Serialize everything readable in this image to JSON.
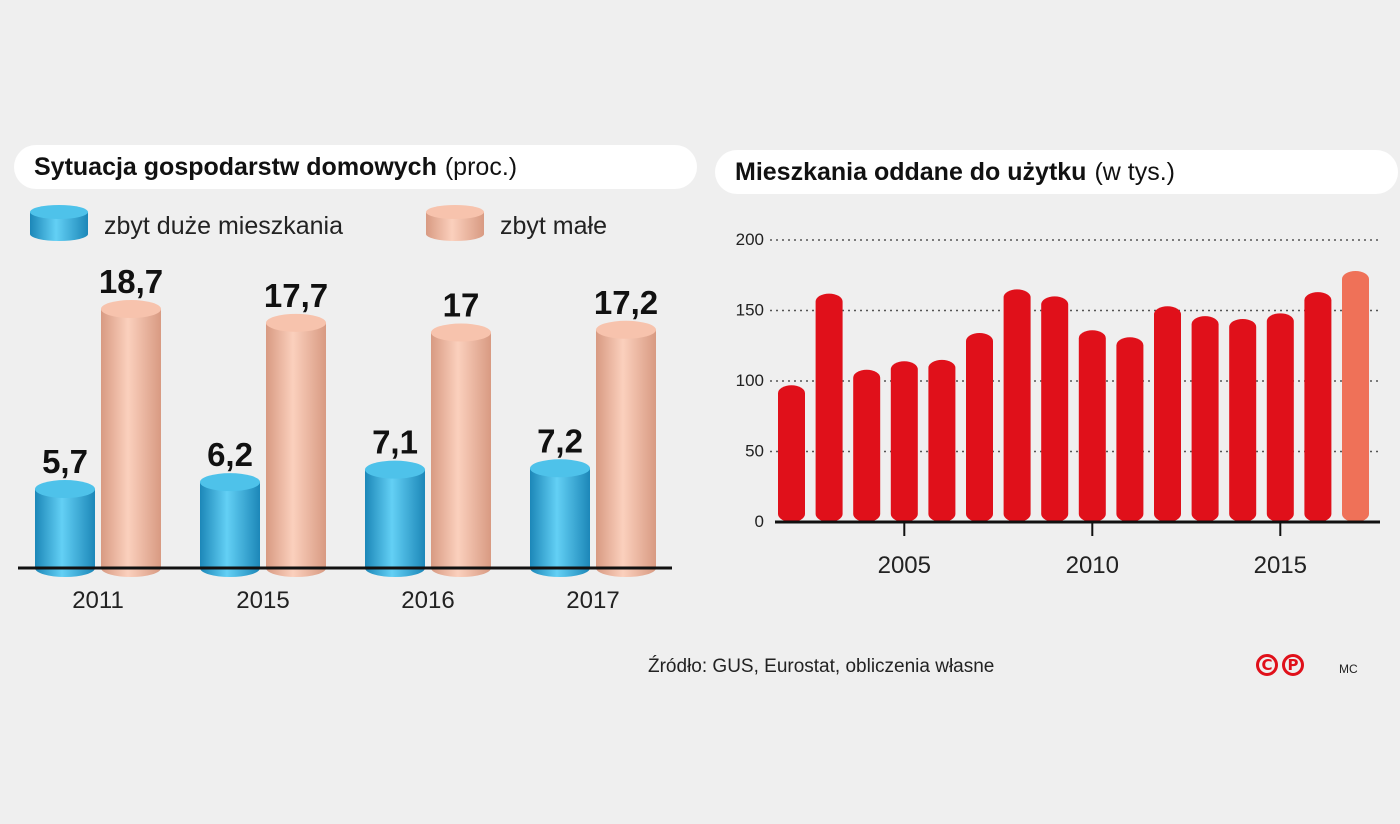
{
  "chart_data": [
    {
      "type": "bar",
      "title": "Sytuacja gospodarstw domowych",
      "unit": "(proc.)",
      "categories": [
        "2011",
        "2015",
        "2016",
        "2017"
      ],
      "series": [
        {
          "name": "zbyt duże mieszkania",
          "values": [
            5.7,
            6.2,
            7.1,
            7.2
          ],
          "labels": [
            "5,7",
            "6,2",
            "7,1",
            "7,2"
          ],
          "color": "#3bb2df"
        },
        {
          "name": "zbyt małe",
          "values": [
            18.7,
            17.7,
            17,
            17.2
          ],
          "labels": [
            "18,7",
            "17,7",
            "17",
            "17,2"
          ],
          "color": "#f2b59e"
        }
      ],
      "legend": "top"
    },
    {
      "type": "bar",
      "title": "Mieszkania oddane do użytku",
      "unit": "(w tys.)",
      "x": [
        2002,
        2003,
        2004,
        2005,
        2006,
        2007,
        2008,
        2009,
        2010,
        2011,
        2012,
        2013,
        2014,
        2015,
        2016,
        2017
      ],
      "values": [
        97,
        162,
        108,
        114,
        115,
        134,
        165,
        160,
        136,
        131,
        153,
        146,
        144,
        148,
        163,
        178
      ],
      "highlight_index": 15,
      "color": "#e0101a",
      "highlight_color": "#ef7158",
      "xticks": [
        "2005",
        "2010",
        "2015"
      ],
      "yticks": [
        "0",
        "50",
        "100",
        "150",
        "200"
      ],
      "ylim": [
        0,
        200
      ],
      "grid": true
    }
  ],
  "footer": {
    "source": "Źródło: GUS, Eurostat,  obliczenia własne",
    "author": "MC",
    "logo_c": "C",
    "logo_p": "P"
  }
}
